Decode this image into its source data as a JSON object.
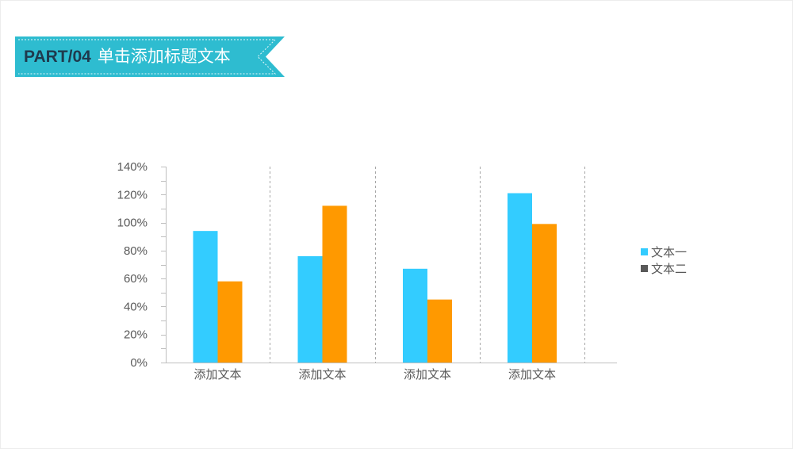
{
  "header": {
    "part_label": "PART/04",
    "title": "单击添加标题文本"
  },
  "colors": {
    "banner": "#2ebcd0",
    "banner_text": "#1f3a4d",
    "series1": "#33ccff",
    "series2": "#ff9900",
    "legend2_swatch": "#595959"
  },
  "chart_data": {
    "type": "bar",
    "categories": [
      "添加文本",
      "添加文本",
      "添加文本",
      "添加文本"
    ],
    "series": [
      {
        "name": "文本一",
        "values": [
          94,
          76,
          67,
          121
        ]
      },
      {
        "name": "文本二",
        "values": [
          58,
          112,
          45,
          99
        ]
      }
    ],
    "ylim": [
      0,
      140
    ],
    "yticks": [
      0,
      20,
      40,
      60,
      80,
      100,
      120,
      140
    ],
    "ytick_labels": [
      "0%",
      "20%",
      "40%",
      "60%",
      "80%",
      "100%",
      "120%",
      "140%"
    ],
    "grid": false,
    "category_separators": true,
    "legend": "right"
  }
}
